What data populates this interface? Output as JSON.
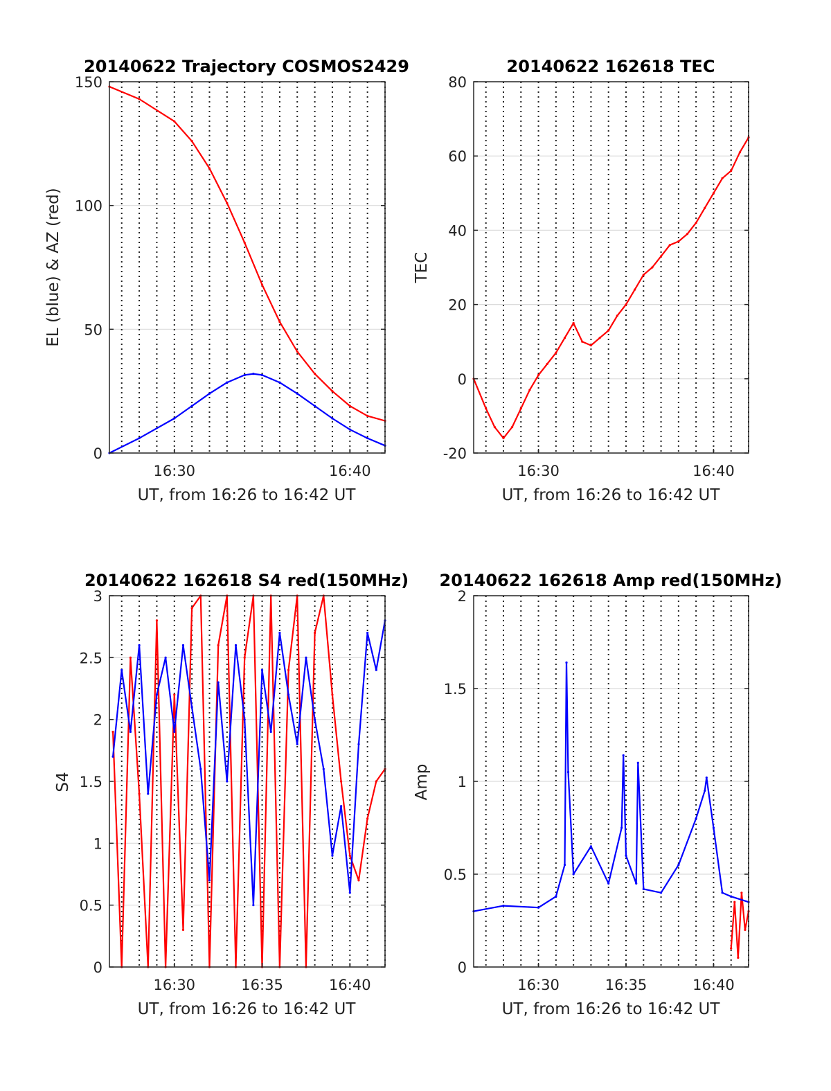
{
  "chart_data": [
    {
      "type": "line",
      "title": "20140622 Trajectory COSMOS2429",
      "xlabel": "UT, from 16:26 to 16:42 UT",
      "ylabel": "EL (blue) & AZ (red)",
      "xlim": [
        "16:26:18",
        "16:42:00"
      ],
      "ylim": [
        0,
        150
      ],
      "yticks": [
        0,
        50,
        100,
        150
      ],
      "xticklabels": [
        "16:30",
        "16:40"
      ],
      "grid": "dotted vertical every minute, light horizontal",
      "colors": {
        "EL": "#0000ff",
        "AZ": "#ff0000"
      },
      "series": [
        {
          "key": "AZ",
          "color": "#ff0000",
          "x": [
            "16:26:18",
            "16:28:00",
            "16:30:00",
            "16:31:00",
            "16:32:00",
            "16:33:00",
            "16:34:00",
            "16:35:00",
            "16:36:00",
            "16:37:00",
            "16:38:00",
            "16:39:00",
            "16:40:00",
            "16:41:00",
            "16:42:00"
          ],
          "values": [
            148,
            143,
            134,
            126,
            115,
            101,
            85,
            68,
            53,
            41,
            32,
            25,
            19,
            15,
            13
          ]
        },
        {
          "key": "EL",
          "color": "#0000ff",
          "x": [
            "16:26:18",
            "16:28:00",
            "16:30:00",
            "16:31:00",
            "16:32:00",
            "16:33:00",
            "16:34:00",
            "16:34:30",
            "16:35:00",
            "16:36:00",
            "16:37:00",
            "16:38:00",
            "16:39:00",
            "16:40:00",
            "16:41:00",
            "16:42:00"
          ],
          "values": [
            0,
            6,
            14,
            19,
            24,
            28.5,
            31.5,
            32,
            31.5,
            28.5,
            24,
            19,
            14,
            9.5,
            6,
            3
          ]
        }
      ]
    },
    {
      "type": "line",
      "title": "20140622 162618 TEC",
      "xlabel": "UT, from 16:26 to 16:42 UT",
      "ylabel": "TEC",
      "xlim": [
        "16:26:18",
        "16:42:00"
      ],
      "ylim": [
        -20,
        80
      ],
      "yticks": [
        -20,
        0,
        20,
        40,
        60,
        80
      ],
      "xticklabels": [
        "16:30",
        "16:40"
      ],
      "grid": "dotted vertical every minute, light horizontal",
      "series": [
        {
          "color": "#ff0000",
          "x": [
            "16:26:18",
            "16:27:00",
            "16:27:30",
            "16:28:00",
            "16:28:30",
            "16:29:00",
            "16:29:30",
            "16:30:00",
            "16:30:30",
            "16:31:00",
            "16:31:30",
            "16:32:00",
            "16:32:30",
            "16:33:00",
            "16:33:30",
            "16:34:00",
            "16:34:30",
            "16:35:00",
            "16:35:30",
            "16:36:00",
            "16:36:30",
            "16:37:00",
            "16:37:30",
            "16:38:00",
            "16:38:30",
            "16:39:00",
            "16:39:30",
            "16:40:00",
            "16:40:30",
            "16:41:00",
            "16:41:30",
            "16:42:00"
          ],
          "values": [
            0,
            -8,
            -13,
            -16,
            -13,
            -8,
            -3,
            1,
            4,
            7,
            11,
            15,
            10,
            9,
            11,
            13,
            17,
            20,
            24,
            28,
            30,
            33,
            36,
            37,
            39,
            42,
            46,
            50,
            54,
            56,
            61,
            65
          ]
        }
      ]
    },
    {
      "type": "line",
      "title": "20140622 162618 S4 red(150MHz)",
      "xlabel": "UT, from 16:26 to 16:42 UT",
      "ylabel": "S4",
      "xlim": [
        "16:26:18",
        "16:42:00"
      ],
      "ylim": [
        0,
        3
      ],
      "yticks": [
        0,
        0.5,
        1,
        1.5,
        2,
        2.5,
        3
      ],
      "xticklabels": [
        "16:30",
        "16:35",
        "16:40"
      ],
      "grid": "dotted vertical every minute, light horizontal",
      "series": [
        {
          "color": "#ff0000",
          "x": [
            "16:26:30",
            "16:27:00",
            "16:27:30",
            "16:28:00",
            "16:28:30",
            "16:29:00",
            "16:29:30",
            "16:30:00",
            "16:30:30",
            "16:31:00",
            "16:31:30",
            "16:32:00",
            "16:32:30",
            "16:33:00",
            "16:33:30",
            "16:34:00",
            "16:34:30",
            "16:35:00",
            "16:35:30",
            "16:36:00",
            "16:36:30",
            "16:37:00",
            "16:37:30",
            "16:38:00",
            "16:38:30",
            "16:39:00",
            "16:39:30",
            "16:40:00",
            "16:40:30",
            "16:41:00",
            "16:41:30",
            "16:42:00"
          ],
          "values": [
            1.9,
            0,
            2.5,
            1.4,
            0,
            2.8,
            0,
            2.2,
            0.3,
            2.9,
            3,
            0,
            2.6,
            3,
            0,
            2.5,
            3,
            0,
            3,
            0,
            2.4,
            3,
            0,
            2.7,
            3,
            2.2,
            1.5,
            0.9,
            0.7,
            1.2,
            1.5,
            1.6
          ]
        },
        {
          "color": "#0000ff",
          "x": [
            "16:26:30",
            "16:27:00",
            "16:27:30",
            "16:28:00",
            "16:28:30",
            "16:29:00",
            "16:29:30",
            "16:30:00",
            "16:30:30",
            "16:31:00",
            "16:31:30",
            "16:32:00",
            "16:32:30",
            "16:33:00",
            "16:33:30",
            "16:34:00",
            "16:34:30",
            "16:35:00",
            "16:35:30",
            "16:36:00",
            "16:36:30",
            "16:37:00",
            "16:37:30",
            "16:38:00",
            "16:38:30",
            "16:39:00",
            "16:39:30",
            "16:40:00",
            "16:40:30",
            "16:41:00",
            "16:41:30",
            "16:42:00"
          ],
          "values": [
            1.7,
            2.4,
            1.9,
            2.6,
            1.4,
            2.2,
            2.5,
            1.9,
            2.6,
            2.1,
            1.6,
            0.7,
            2.3,
            1.5,
            2.6,
            2.0,
            0.5,
            2.4,
            1.9,
            2.7,
            2.2,
            1.8,
            2.5,
            2.0,
            1.6,
            0.9,
            1.3,
            0.6,
            1.8,
            2.7,
            2.4,
            2.8
          ]
        }
      ]
    },
    {
      "type": "line",
      "title": "20140622 162618 Amp red(150MHz)",
      "xlabel": "UT, from 16:26 to 16:42 UT",
      "ylabel": "Amp",
      "xlim": [
        "16:26:18",
        "16:42:00"
      ],
      "ylim": [
        0,
        2
      ],
      "yticks": [
        0,
        0.5,
        1,
        1.5,
        2
      ],
      "xticklabels": [
        "16:30",
        "16:35",
        "16:40"
      ],
      "grid": "dotted vertical every minute, light horizontal",
      "series": [
        {
          "color": "#ff0000",
          "x": [
            "16:41:00",
            "16:41:12",
            "16:41:24",
            "16:41:36",
            "16:41:48",
            "16:42:00"
          ],
          "values": [
            0.1,
            0.35,
            0.05,
            0.4,
            0.2,
            0.3
          ]
        },
        {
          "color": "#0000ff",
          "x": [
            "16:26:18",
            "16:28:00",
            "16:30:00",
            "16:31:00",
            "16:31:30",
            "16:31:36",
            "16:31:42",
            "16:32:00",
            "16:33:00",
            "16:34:00",
            "16:34:45",
            "16:34:51",
            "16:35:00",
            "16:35:35",
            "16:35:41",
            "16:36:00",
            "16:37:00",
            "16:38:00",
            "16:39:00",
            "16:39:30",
            "16:39:36",
            "16:40:00",
            "16:40:30",
            "16:41:00",
            "16:42:00"
          ],
          "values": [
            0.3,
            0.33,
            0.32,
            0.38,
            0.55,
            1.64,
            1.05,
            0.5,
            0.65,
            0.45,
            0.75,
            1.14,
            0.6,
            0.45,
            1.1,
            0.42,
            0.4,
            0.55,
            0.8,
            0.95,
            1.02,
            0.75,
            0.4,
            0.38,
            0.35
          ]
        }
      ]
    }
  ]
}
